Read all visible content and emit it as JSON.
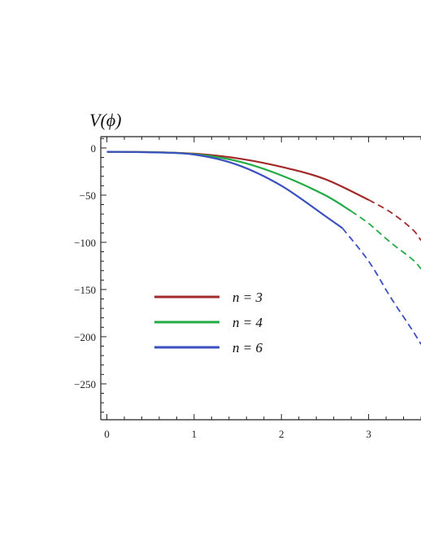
{
  "chart_data": {
    "type": "line",
    "ylabel": "V(ϕ)",
    "xlabel": "",
    "xlim": [
      -0.07,
      3.6
    ],
    "ylim": [
      -288,
      12
    ],
    "xticks": [
      "0",
      "1",
      "2",
      "3"
    ],
    "yticks": [
      "0",
      "−50",
      "−100",
      "−150",
      "−200",
      "−250"
    ],
    "legend_position": "left-middle",
    "series": [
      {
        "name": "n = 3",
        "color": "#a32a2a",
        "solid": {
          "x": [
            0,
            0.5,
            1.0,
            1.5,
            2.0,
            2.5,
            3.0
          ],
          "y": [
            -4,
            -4.4,
            -6,
            -11,
            -20,
            -33,
            -55
          ]
        },
        "dashed": {
          "x": [
            3.0,
            3.25,
            3.5,
            3.6
          ],
          "y": [
            -55,
            -68,
            -86,
            -98
          ]
        }
      },
      {
        "name": "n = 4",
        "color": "#22aa44",
        "solid": {
          "x": [
            0,
            0.5,
            1.0,
            1.5,
            2.0,
            2.5,
            2.8
          ],
          "y": [
            -4,
            -4.5,
            -6.5,
            -14,
            -29,
            -50,
            -67
          ]
        },
        "dashed": {
          "x": [
            2.8,
            3.0,
            3.25,
            3.5,
            3.6
          ],
          "y": [
            -67,
            -80,
            -100,
            -118,
            -128
          ]
        }
      },
      {
        "name": "n = 6",
        "color": "#3a4fc0",
        "solid": {
          "x": [
            0,
            0.5,
            1.0,
            1.5,
            2.0,
            2.5,
            2.7
          ],
          "y": [
            -4,
            -4.6,
            -7,
            -18,
            -40,
            -72,
            -85
          ]
        },
        "dashed": {
          "x": [
            2.7,
            3.0,
            3.25,
            3.5,
            3.6
          ],
          "y": [
            -85,
            -120,
            -158,
            -193,
            -208
          ]
        }
      }
    ]
  }
}
